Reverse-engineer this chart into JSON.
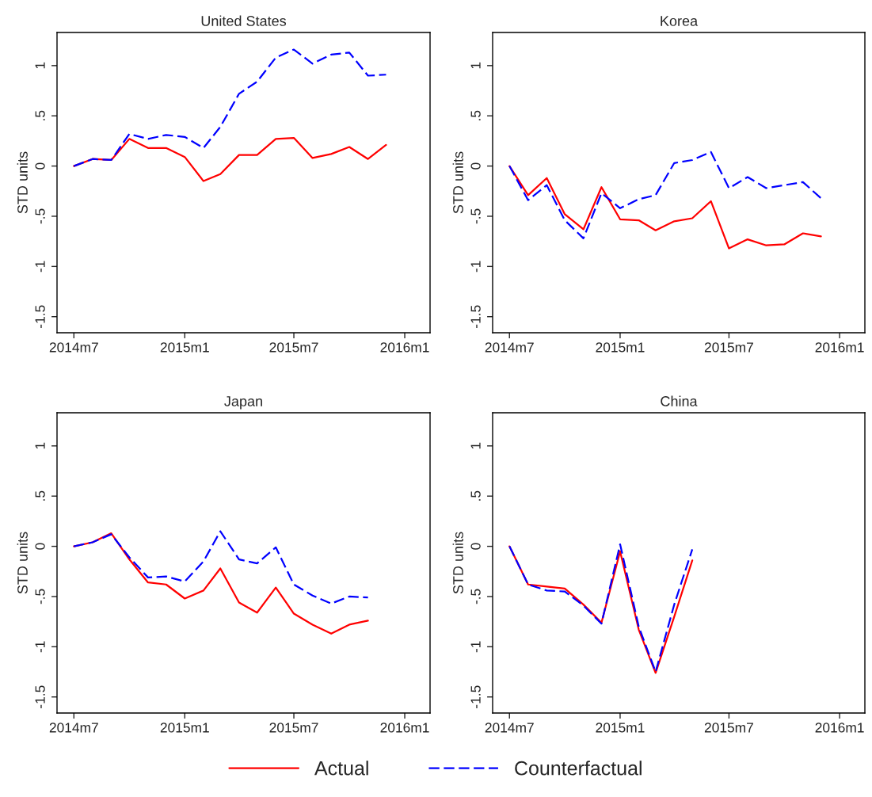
{
  "chart_data": [
    {
      "type": "line",
      "title": "United States",
      "ylabel": "STD units",
      "legend": "bottom",
      "x": [
        "2014-07",
        "2014-08",
        "2014-09",
        "2014-10",
        "2014-11",
        "2014-12",
        "2015-01",
        "2015-02",
        "2015-03",
        "2015-04",
        "2015-05",
        "2015-06",
        "2015-07",
        "2015-08",
        "2015-09",
        "2015-10",
        "2015-11",
        "2015-12"
      ],
      "series": [
        {
          "name": "Actual",
          "color": "#ff0000",
          "line_style": "solid",
          "values": [
            0,
            0.07,
            0.06,
            0.27,
            0.18,
            0.18,
            0.09,
            -0.15,
            -0.08,
            0.11,
            0.11,
            0.27,
            0.28,
            0.08,
            0.12,
            0.19,
            0.07,
            0.21
          ]
        },
        {
          "name": "Counterfactual",
          "color": "#0000ff",
          "line_style": "dashed",
          "values": [
            0,
            0.07,
            0.06,
            0.32,
            0.27,
            0.31,
            0.29,
            0.18,
            0.39,
            0.72,
            0.84,
            1.08,
            1.16,
            1.02,
            1.11,
            1.13,
            0.9,
            0.91
          ]
        }
      ],
      "xlim": [
        "2014-06-03",
        "2016-02-12"
      ],
      "xticks": [
        {
          "value": "2014-07",
          "label": "2014m7"
        },
        {
          "value": "2015-01",
          "label": "2015m1"
        },
        {
          "value": "2015-07",
          "label": "2015m7"
        },
        {
          "value": "2016-01",
          "label": "2016m1"
        }
      ],
      "ylim": [
        -1.66,
        1.33
      ],
      "yticks": [
        {
          "value": -1.5,
          "label": "-1.5"
        },
        -1,
        {
          "value": -0.5,
          "label": "-.5"
        },
        0,
        {
          "value": 0.5,
          "label": ".5"
        },
        1
      ]
    },
    {
      "type": "line",
      "title": "Korea",
      "ylabel": "STD units",
      "x": [
        "2014-07",
        "2014-08",
        "2014-09",
        "2014-10",
        "2014-11",
        "2014-12",
        "2015-01",
        "2015-02",
        "2015-03",
        "2015-04",
        "2015-05",
        "2015-06",
        "2015-07",
        "2015-08",
        "2015-09",
        "2015-10",
        "2015-11",
        "2015-12"
      ],
      "series": [
        {
          "color": "#ff0000",
          "line_style": "solid",
          "values": [
            0,
            -0.29,
            -0.12,
            -0.48,
            -0.63,
            -0.21,
            -0.53,
            -0.54,
            -0.64,
            -0.55,
            -0.52,
            -0.35,
            -0.82,
            -0.73,
            -0.79,
            -0.78,
            -0.67,
            -0.7
          ]
        },
        {
          "color": "#0000ff",
          "line_style": "dashed",
          "values": [
            0,
            -0.34,
            -0.19,
            -0.54,
            -0.72,
            -0.27,
            -0.42,
            -0.33,
            -0.29,
            0.03,
            0.06,
            0.14,
            -0.22,
            -0.11,
            -0.22,
            -0.19,
            -0.16,
            -0.32
          ]
        }
      ],
      "xlim": [
        "2014-06-03",
        "2016-02-12"
      ],
      "xticks": [
        {
          "value": "2014-07",
          "label": "2014m7"
        },
        {
          "value": "2015-01",
          "label": "2015m1"
        },
        {
          "value": "2015-07",
          "label": "2015m7"
        },
        {
          "value": "2016-01",
          "label": "2016m1"
        }
      ],
      "ylim": [
        -1.66,
        1.33
      ],
      "yticks": [
        {
          "value": -1.5,
          "label": "-1.5"
        },
        -1,
        {
          "value": -0.5,
          "label": "-.5"
        },
        0,
        {
          "value": 0.5,
          "label": ".5"
        },
        1
      ]
    },
    {
      "type": "line",
      "title": "Japan",
      "ylabel": "STD units",
      "x": [
        "2014-07",
        "2014-08",
        "2014-09",
        "2014-10",
        "2014-11",
        "2014-12",
        "2015-01",
        "2015-02",
        "2015-03",
        "2015-04",
        "2015-05",
        "2015-06",
        "2015-07",
        "2015-08",
        "2015-09",
        "2015-10",
        "2015-11"
      ],
      "series": [
        {
          "color": "#ff0000",
          "line_style": "solid",
          "values": [
            0,
            0.04,
            0.13,
            -0.13,
            -0.36,
            -0.38,
            -0.52,
            -0.44,
            -0.22,
            -0.56,
            -0.66,
            -0.41,
            -0.67,
            -0.78,
            -0.87,
            -0.78,
            -0.74
          ]
        },
        {
          "color": "#0000ff",
          "line_style": "dashed",
          "values": [
            0,
            0.04,
            0.12,
            -0.11,
            -0.31,
            -0.3,
            -0.35,
            -0.15,
            0.15,
            -0.13,
            -0.17,
            -0.01,
            -0.38,
            -0.49,
            -0.57,
            -0.5,
            -0.51
          ]
        }
      ],
      "xlim": [
        "2014-06-03",
        "2016-02-12"
      ],
      "xticks": [
        {
          "value": "2014-07",
          "label": "2014m7"
        },
        {
          "value": "2015-01",
          "label": "2015m1"
        },
        {
          "value": "2015-07",
          "label": "2015m7"
        },
        {
          "value": "2016-01",
          "label": "2016m1"
        }
      ],
      "ylim": [
        -1.66,
        1.33
      ],
      "yticks": [
        {
          "value": -1.5,
          "label": "-1.5"
        },
        -1,
        {
          "value": -0.5,
          "label": "-.5"
        },
        0,
        {
          "value": 0.5,
          "label": ".5"
        },
        1
      ]
    },
    {
      "type": "line",
      "title": "China",
      "ylabel": "STD units",
      "x": [
        "2014-07",
        "2014-08",
        "2014-09",
        "2014-10",
        "2014-11",
        "2014-12",
        "2015-01",
        "2015-02",
        "2015-03",
        "2015-04",
        "2015-05"
      ],
      "series": [
        {
          "color": "#ff0000",
          "line_style": "solid",
          "values": [
            0,
            -0.38,
            -0.4,
            -0.42,
            -0.58,
            -0.76,
            -0.05,
            -0.83,
            -1.26,
            -0.7,
            -0.14
          ]
        },
        {
          "color": "#0000ff",
          "line_style": "dashed",
          "values": [
            0,
            -0.38,
            -0.44,
            -0.45,
            -0.59,
            -0.77,
            0.02,
            -0.8,
            -1.25,
            -0.58,
            -0.03
          ]
        }
      ],
      "xlim": [
        "2014-06-03",
        "2016-02-12"
      ],
      "xticks": [
        {
          "value": "2014-07",
          "label": "2014m7"
        },
        {
          "value": "2015-01",
          "label": "2015m1"
        },
        {
          "value": "2015-07",
          "label": "2015m7"
        },
        {
          "value": "2016-01",
          "label": "2016m1"
        }
      ],
      "ylim": [
        -1.66,
        1.33
      ],
      "yticks": [
        {
          "value": -1.5,
          "label": "-1.5"
        },
        -1,
        {
          "value": -0.5,
          "label": "-.5"
        },
        0,
        {
          "value": 0.5,
          "label": ".5"
        },
        1
      ]
    }
  ]
}
